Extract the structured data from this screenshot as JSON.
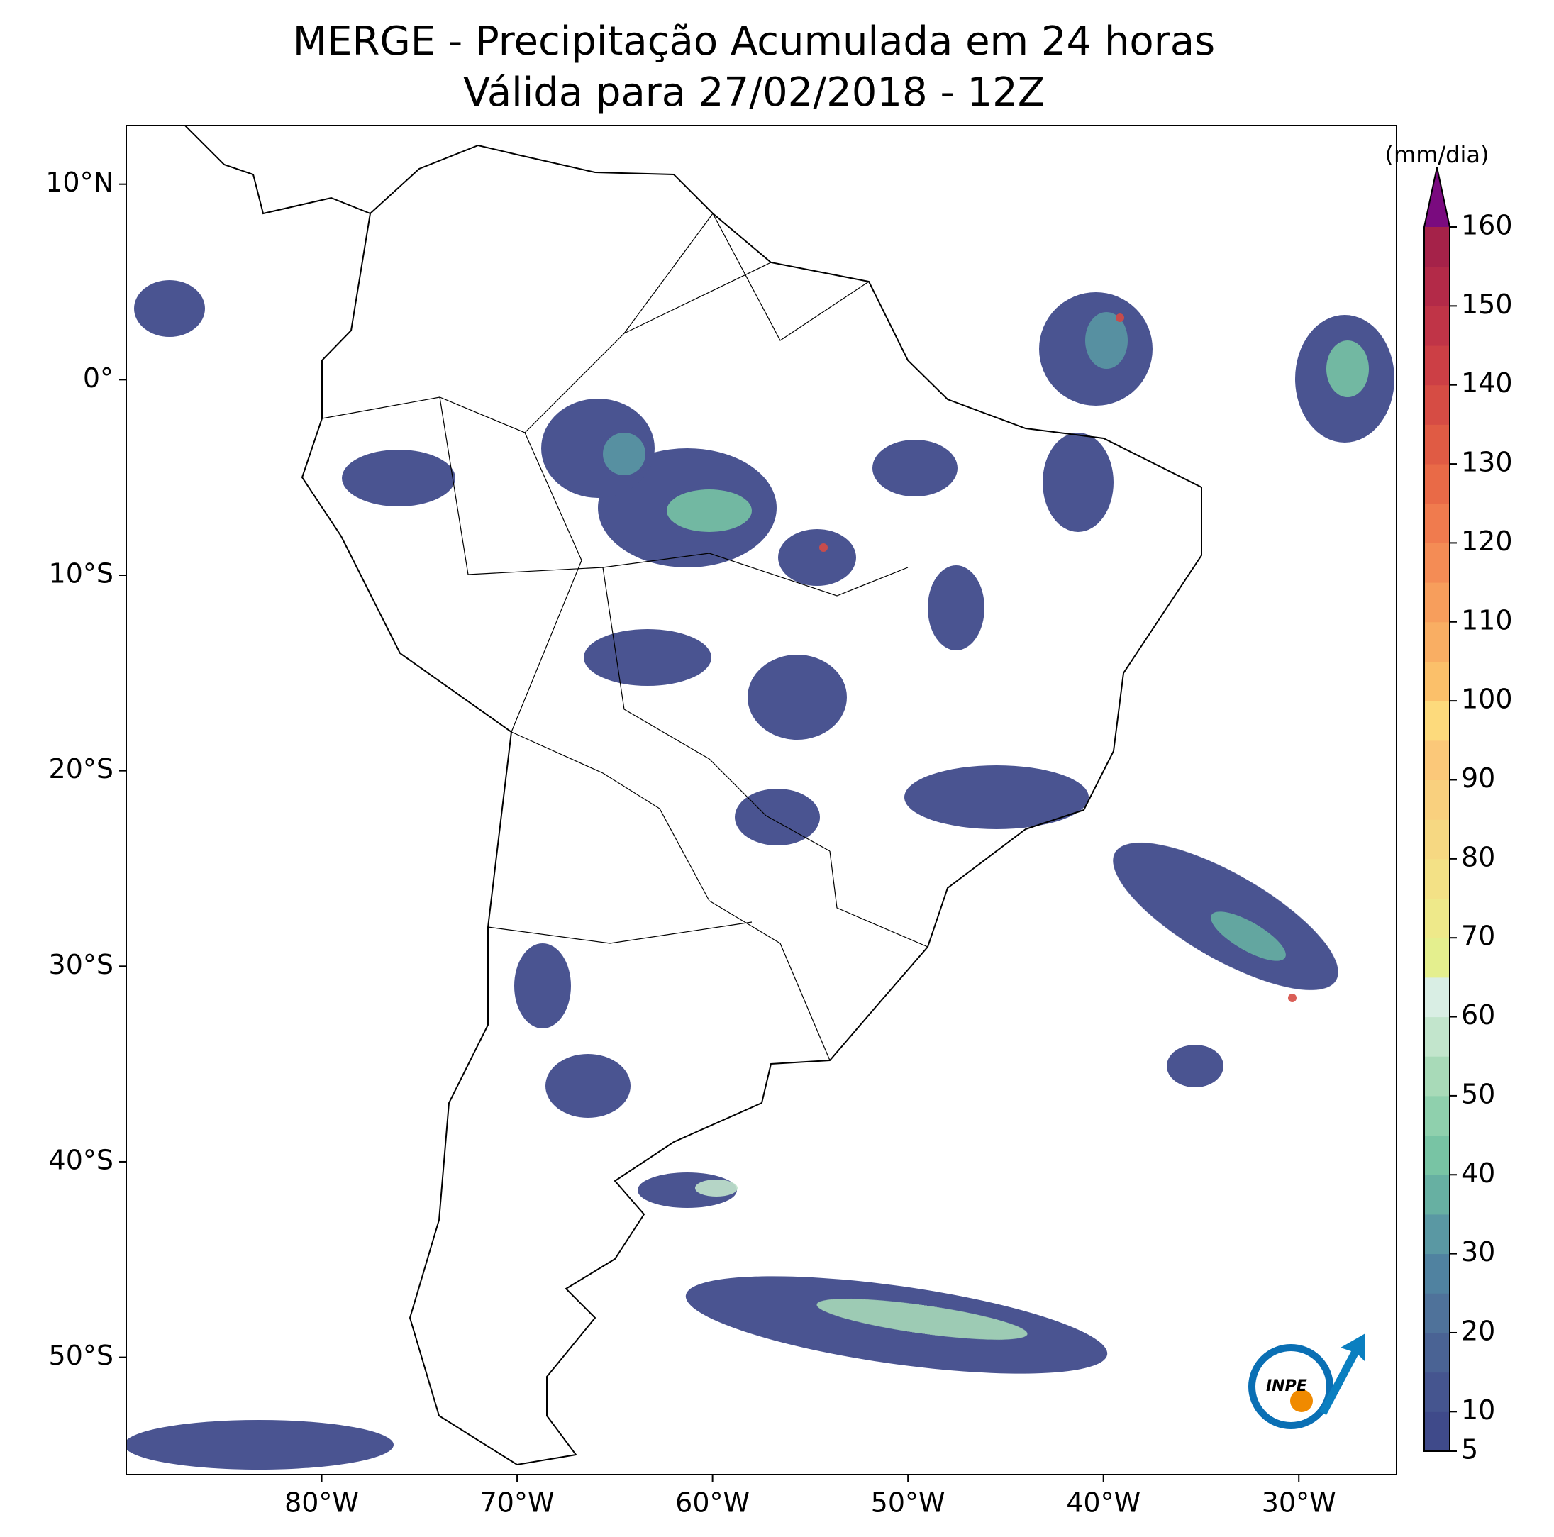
{
  "title": "MERGE - Precipitação Acumulada em 24 horas",
  "subtitle": "Válida para 27/02/2018 - 12Z",
  "map": {
    "xlim": [
      -90,
      -25
    ],
    "ylim": [
      -56,
      13
    ],
    "xticks": [
      {
        "value": -80,
        "label": "80°W"
      },
      {
        "value": -70,
        "label": "70°W"
      },
      {
        "value": -60,
        "label": "60°W"
      },
      {
        "value": -50,
        "label": "50°W"
      },
      {
        "value": -40,
        "label": "40°W"
      },
      {
        "value": -30,
        "label": "30°W"
      }
    ],
    "yticks": [
      {
        "value": 10,
        "label": "10°N"
      },
      {
        "value": 0,
        "label": "0°"
      },
      {
        "value": -10,
        "label": "10°S"
      },
      {
        "value": -20,
        "label": "20°S"
      },
      {
        "value": -30,
        "label": "30°S"
      },
      {
        "value": -40,
        "label": "40°S"
      },
      {
        "value": -50,
        "label": "50°S"
      }
    ]
  },
  "colorbar": {
    "label": "(mm/dia)",
    "lim": [
      5,
      160
    ],
    "ticks": [
      5,
      10,
      20,
      30,
      40,
      50,
      60,
      70,
      80,
      90,
      100,
      110,
      120,
      130,
      140,
      150,
      160
    ],
    "colors": [
      "#3f4a8a",
      "#45558f",
      "#4a6394",
      "#4f729a",
      "#5082a0",
      "#5a98a3",
      "#67b0a2",
      "#78c4a4",
      "#8fd0ad",
      "#a8dab8",
      "#c2e5cc",
      "#d9eee4",
      "#e4ef8e",
      "#eee98a",
      "#f3e186",
      "#f6d882",
      "#f9d07e",
      "#fbc879",
      "#fdda7c",
      "#fbc06a",
      "#f9ae63",
      "#f79e5c",
      "#f48c55",
      "#f07b4e",
      "#e96a47",
      "#e05b44",
      "#d64c44",
      "#cc3f45",
      "#c03447",
      "#b32a48",
      "#a52249"
    ],
    "over_color": "#7a0b7f"
  },
  "logo": "INPE"
}
